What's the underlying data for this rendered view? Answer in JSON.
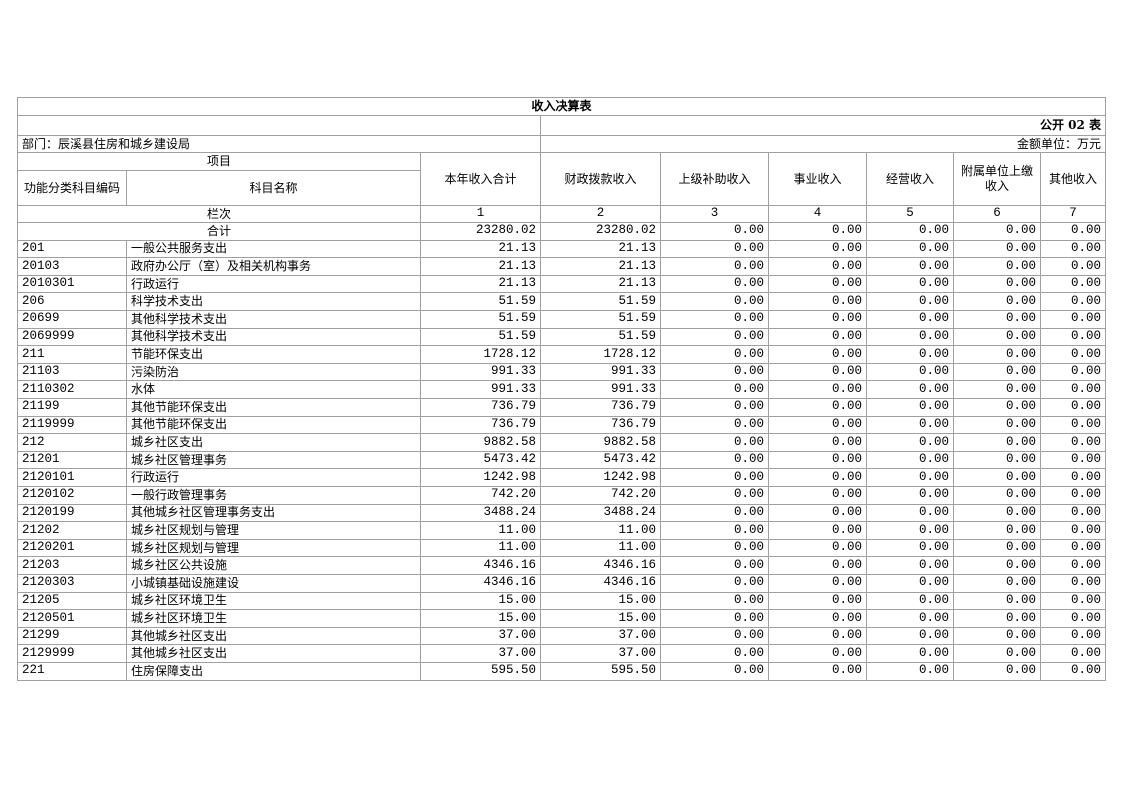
{
  "title": "收入决算表",
  "form_no": "公开 02 表",
  "department": "部门：辰溪县住房和城乡建设局",
  "unit": "金额单位：万元",
  "header": {
    "group": "项目",
    "code": "功能分类科目编码",
    "name": "科目名称",
    "columns": [
      "本年收入合计",
      "财政拨款收入",
      "上级补助收入",
      "事业收入",
      "经营收入",
      "附属单位上缴收入",
      "其他收入"
    ]
  },
  "index_row": {
    "label": "栏次",
    "numbers": [
      "1",
      "2",
      "3",
      "4",
      "5",
      "6",
      "7"
    ]
  },
  "total": {
    "label": "合计",
    "values": [
      "23280.02",
      "23280.02",
      "0.00",
      "0.00",
      "0.00",
      "0.00",
      "0.00"
    ]
  },
  "rows": [
    {
      "code": "201",
      "name": "一般公共服务支出",
      "values": [
        "21.13",
        "21.13",
        "0.00",
        "0.00",
        "0.00",
        "0.00",
        "0.00"
      ]
    },
    {
      "code": "20103",
      "name": "政府办公厅（室）及相关机构事务",
      "values": [
        "21.13",
        "21.13",
        "0.00",
        "0.00",
        "0.00",
        "0.00",
        "0.00"
      ]
    },
    {
      "code": "2010301",
      "name": "行政运行",
      "values": [
        "21.13",
        "21.13",
        "0.00",
        "0.00",
        "0.00",
        "0.00",
        "0.00"
      ]
    },
    {
      "code": "206",
      "name": "科学技术支出",
      "values": [
        "51.59",
        "51.59",
        "0.00",
        "0.00",
        "0.00",
        "0.00",
        "0.00"
      ]
    },
    {
      "code": "20699",
      "name": "其他科学技术支出",
      "values": [
        "51.59",
        "51.59",
        "0.00",
        "0.00",
        "0.00",
        "0.00",
        "0.00"
      ]
    },
    {
      "code": "2069999",
      "name": "其他科学技术支出",
      "values": [
        "51.59",
        "51.59",
        "0.00",
        "0.00",
        "0.00",
        "0.00",
        "0.00"
      ]
    },
    {
      "code": "211",
      "name": "节能环保支出",
      "values": [
        "1728.12",
        "1728.12",
        "0.00",
        "0.00",
        "0.00",
        "0.00",
        "0.00"
      ]
    },
    {
      "code": "21103",
      "name": "污染防治",
      "values": [
        "991.33",
        "991.33",
        "0.00",
        "0.00",
        "0.00",
        "0.00",
        "0.00"
      ]
    },
    {
      "code": "2110302",
      "name": "水体",
      "values": [
        "991.33",
        "991.33",
        "0.00",
        "0.00",
        "0.00",
        "0.00",
        "0.00"
      ]
    },
    {
      "code": "21199",
      "name": "其他节能环保支出",
      "values": [
        "736.79",
        "736.79",
        "0.00",
        "0.00",
        "0.00",
        "0.00",
        "0.00"
      ]
    },
    {
      "code": "2119999",
      "name": "其他节能环保支出",
      "values": [
        "736.79",
        "736.79",
        "0.00",
        "0.00",
        "0.00",
        "0.00",
        "0.00"
      ]
    },
    {
      "code": "212",
      "name": "城乡社区支出",
      "values": [
        "9882.58",
        "9882.58",
        "0.00",
        "0.00",
        "0.00",
        "0.00",
        "0.00"
      ]
    },
    {
      "code": "21201",
      "name": "城乡社区管理事务",
      "values": [
        "5473.42",
        "5473.42",
        "0.00",
        "0.00",
        "0.00",
        "0.00",
        "0.00"
      ]
    },
    {
      "code": "2120101",
      "name": "行政运行",
      "values": [
        "1242.98",
        "1242.98",
        "0.00",
        "0.00",
        "0.00",
        "0.00",
        "0.00"
      ]
    },
    {
      "code": "2120102",
      "name": "一般行政管理事务",
      "values": [
        "742.20",
        "742.20",
        "0.00",
        "0.00",
        "0.00",
        "0.00",
        "0.00"
      ]
    },
    {
      "code": "2120199",
      "name": "其他城乡社区管理事务支出",
      "values": [
        "3488.24",
        "3488.24",
        "0.00",
        "0.00",
        "0.00",
        "0.00",
        "0.00"
      ]
    },
    {
      "code": "21202",
      "name": "城乡社区规划与管理",
      "values": [
        "11.00",
        "11.00",
        "0.00",
        "0.00",
        "0.00",
        "0.00",
        "0.00"
      ]
    },
    {
      "code": "2120201",
      "name": "城乡社区规划与管理",
      "values": [
        "11.00",
        "11.00",
        "0.00",
        "0.00",
        "0.00",
        "0.00",
        "0.00"
      ]
    },
    {
      "code": "21203",
      "name": "城乡社区公共设施",
      "values": [
        "4346.16",
        "4346.16",
        "0.00",
        "0.00",
        "0.00",
        "0.00",
        "0.00"
      ]
    },
    {
      "code": "2120303",
      "name": "小城镇基础设施建设",
      "values": [
        "4346.16",
        "4346.16",
        "0.00",
        "0.00",
        "0.00",
        "0.00",
        "0.00"
      ]
    },
    {
      "code": "21205",
      "name": "城乡社区环境卫生",
      "values": [
        "15.00",
        "15.00",
        "0.00",
        "0.00",
        "0.00",
        "0.00",
        "0.00"
      ]
    },
    {
      "code": "2120501",
      "name": "城乡社区环境卫生",
      "values": [
        "15.00",
        "15.00",
        "0.00",
        "0.00",
        "0.00",
        "0.00",
        "0.00"
      ]
    },
    {
      "code": "21299",
      "name": "其他城乡社区支出",
      "values": [
        "37.00",
        "37.00",
        "0.00",
        "0.00",
        "0.00",
        "0.00",
        "0.00"
      ]
    },
    {
      "code": "2129999",
      "name": "其他城乡社区支出",
      "values": [
        "37.00",
        "37.00",
        "0.00",
        "0.00",
        "0.00",
        "0.00",
        "0.00"
      ]
    },
    {
      "code": "221",
      "name": "住房保障支出",
      "values": [
        "595.50",
        "595.50",
        "0.00",
        "0.00",
        "0.00",
        "0.00",
        "0.00"
      ]
    }
  ]
}
